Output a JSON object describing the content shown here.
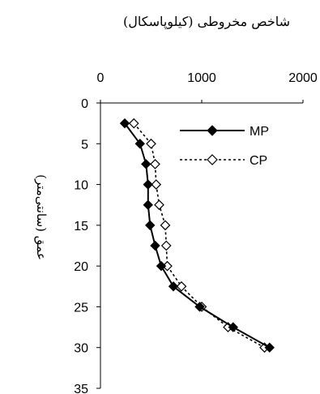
{
  "chart_data": {
    "type": "line",
    "title": "شاخص مخروطی (کیلوپاسکال)",
    "xlabel": "شاخص مخروطی (کیلوپاسکال)",
    "ylabel": "عمق (سانتی‌متر)",
    "xlim": [
      0,
      2000
    ],
    "ylim": [
      0,
      35
    ],
    "x_ticks": [
      "0",
      "1000",
      "2000"
    ],
    "y_ticks": [
      "0",
      "5",
      "10",
      "15",
      "20",
      "25",
      "30",
      "35"
    ],
    "y_inverted": true,
    "x_axis_position": "top",
    "grid": false,
    "legend_position": "top-right",
    "series": [
      {
        "name": "MP",
        "line_style": "solid",
        "marker": "filled-diamond",
        "color": "#000000",
        "points": [
          {
            "x": 240,
            "y": 2.5
          },
          {
            "x": 390,
            "y": 5
          },
          {
            "x": 450,
            "y": 7.5
          },
          {
            "x": 470,
            "y": 10
          },
          {
            "x": 470,
            "y": 12.5
          },
          {
            "x": 490,
            "y": 15
          },
          {
            "x": 540,
            "y": 17.5
          },
          {
            "x": 600,
            "y": 20
          },
          {
            "x": 720,
            "y": 22.5
          },
          {
            "x": 980,
            "y": 25
          },
          {
            "x": 1310,
            "y": 27.5
          },
          {
            "x": 1670,
            "y": 30
          }
        ]
      },
      {
        "name": "CP",
        "line_style": "dotted",
        "marker": "open-diamond",
        "color": "#000000",
        "points": [
          {
            "x": 330,
            "y": 2.5
          },
          {
            "x": 500,
            "y": 5
          },
          {
            "x": 540,
            "y": 7.5
          },
          {
            "x": 550,
            "y": 10
          },
          {
            "x": 580,
            "y": 12.5
          },
          {
            "x": 640,
            "y": 15
          },
          {
            "x": 650,
            "y": 17.5
          },
          {
            "x": 660,
            "y": 20
          },
          {
            "x": 800,
            "y": 22.5
          },
          {
            "x": 1000,
            "y": 25
          },
          {
            "x": 1260,
            "y": 27.5
          },
          {
            "x": 1620,
            "y": 30
          }
        ]
      }
    ]
  }
}
